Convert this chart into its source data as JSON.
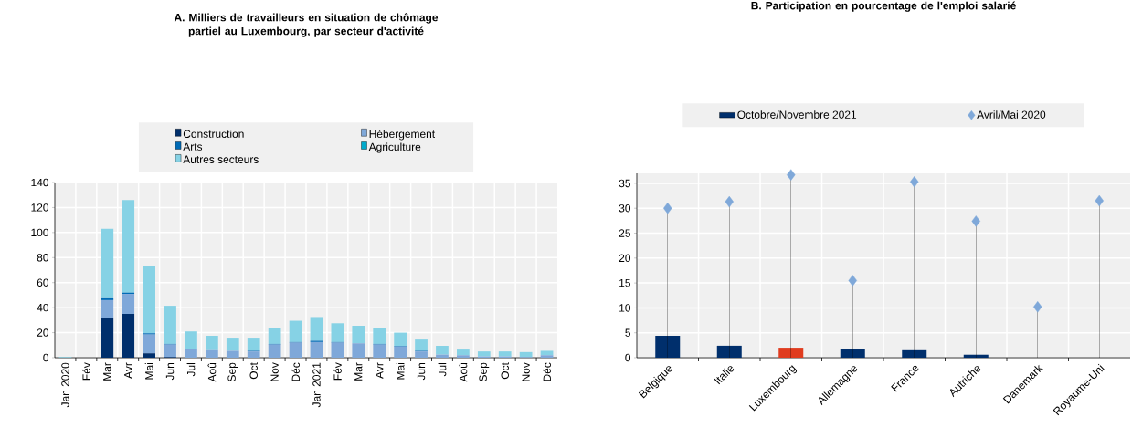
{
  "chart_data": [
    {
      "type": "bar",
      "title": "A. Milliers de travailleurs  en situation de chômage partiel au Luxembourg, par secteur d'activité",
      "categories": [
        "Jan 2020",
        "Fév",
        "Mar",
        "Avr",
        "Mai",
        "Jun",
        "Jul",
        "Aoû",
        "Sep",
        "Oct",
        "Nov",
        "Déc",
        "Jan 2021",
        "Fév",
        "Mar",
        "Avr",
        "Mai",
        "Jun",
        "Jul",
        "Aoû",
        "Sep",
        "Oct",
        "Nov",
        "Déc"
      ],
      "stacked": true,
      "ylim": [
        0,
        140
      ],
      "yticks": [
        0,
        20,
        40,
        60,
        80,
        100,
        120,
        140
      ],
      "grid": true,
      "legend": "top",
      "series": [
        {
          "name": "Construction",
          "color": "#002f6c",
          "values": [
            0,
            0,
            32,
            35,
            3.5,
            0.5,
            0,
            0,
            0,
            0,
            0,
            0,
            0,
            0,
            0,
            0,
            0,
            0,
            0,
            0,
            0,
            0,
            0,
            0
          ]
        },
        {
          "name": "Hébergement",
          "color": "#7fa8d9",
          "values": [
            0,
            0,
            14,
            16,
            15,
            10,
            7,
            6,
            5.5,
            5,
            10.5,
            12,
            12.5,
            12,
            11.5,
            10.5,
            9,
            5,
            2.5,
            2,
            1,
            1,
            0.5,
            2
          ]
        },
        {
          "name": "Arts",
          "color": "#006bb6",
          "values": [
            0,
            0,
            1.5,
            1,
            1,
            0.5,
            0,
            0,
            0,
            0.5,
            0.5,
            0.5,
            1,
            0.5,
            0,
            0.5,
            0.5,
            0.5,
            0,
            0,
            0,
            0,
            0,
            0
          ]
        },
        {
          "name": "Agriculture",
          "color": "#00aacc",
          "values": [
            0,
            0,
            0,
            0,
            0,
            0,
            0,
            0,
            0,
            0,
            0,
            0,
            0,
            0,
            0,
            0,
            0,
            0,
            0,
            0,
            0,
            0,
            0,
            0
          ]
        },
        {
          "name": "Autres secteurs",
          "color": "#86d2e5",
          "values": [
            0.5,
            0,
            55.5,
            74,
            53.5,
            30.5,
            14,
            11.5,
            10.5,
            10.5,
            12.5,
            17,
            19,
            15,
            14,
            13,
            10.5,
            9,
            7,
            4.5,
            4,
            4,
            4,
            3.5
          ]
        }
      ]
    },
    {
      "type": "bar",
      "title": "B. Participation en pourcentage de l'emploi salarié",
      "categories": [
        "Belgique",
        "Italie",
        "Luxembourg",
        "Allemagne",
        "France",
        "Autriche",
        "Danemark",
        "Royaume-Uni"
      ],
      "ylim": [
        0,
        37
      ],
      "yticks": [
        0,
        5,
        10,
        15,
        20,
        25,
        30,
        35
      ],
      "grid": true,
      "legend": "top",
      "series": [
        {
          "name": "Octobre/Novembre 2021",
          "type": "bar",
          "color": "#002f6c",
          "colors": [
            "#002f6c",
            "#002f6c",
            "#e03c1f",
            "#002f6c",
            "#002f6c",
            "#002f6c",
            "#002f6c",
            "#002f6c"
          ],
          "values": [
            4.4,
            2.4,
            2.0,
            1.7,
            1.5,
            0.6,
            null,
            null
          ]
        },
        {
          "name": "Avril/Mai 2020",
          "type": "lollipop",
          "marker": "diamond",
          "color": "#7fa8d9",
          "values": [
            30,
            31.3,
            36.7,
            15.5,
            35.3,
            27.4,
            10.2,
            31.5
          ]
        }
      ]
    }
  ]
}
